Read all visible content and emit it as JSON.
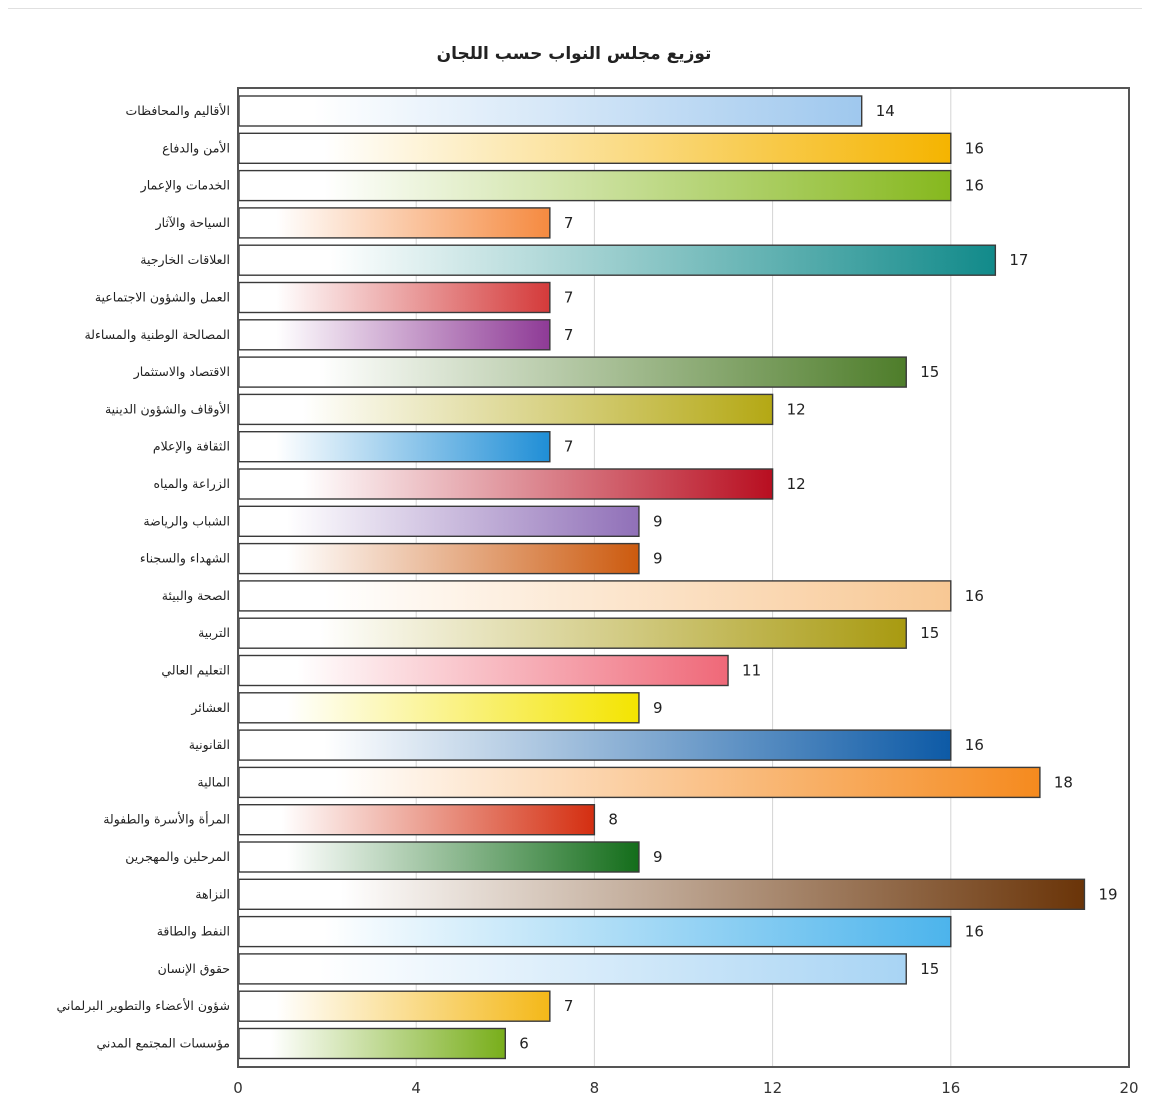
{
  "chart_data": {
    "type": "bar",
    "orientation": "horizontal",
    "title": "توزيع مجلس النواب حسب اللجان",
    "xlabel": "",
    "ylabel": "",
    "xlim": [
      0,
      20
    ],
    "xticks": [
      "0",
      "4",
      "8",
      "12",
      "16",
      "20"
    ],
    "grid": true,
    "categories": [
      "الأقاليم والمحافظات",
      "الأمن والدفاع",
      "الخدمات والإعمار",
      "السياحة والآثار",
      "العلاقات الخارجية",
      "العمل والشؤون الاجتماعية",
      "المصالحة الوطنية والمساءلة",
      "الاقتصاد والاستثمار",
      "الأوقاف والشؤون الدينية",
      "الثقافة والإعلام",
      "الزراعة والمياه",
      "الشباب والرياضة",
      "الشهداء والسجناء",
      "الصحة والبيئة",
      "التربية",
      "التعليم العالي",
      "العشائر",
      "القانونية",
      "المالية",
      "المرأة والأسرة والطفولة",
      "المرحلين والمهجرين",
      "النزاهة",
      "النفط والطاقة",
      "حقوق الإنسان",
      "شؤون الأعضاء والتطوير البرلماني",
      "مؤسسات المجتمع المدني"
    ],
    "values": [
      14,
      16,
      16,
      7,
      17,
      7,
      7,
      15,
      12,
      7,
      12,
      9,
      9,
      16,
      15,
      11,
      9,
      16,
      18,
      8,
      9,
      19,
      16,
      15,
      7,
      6
    ],
    "colors": [
      "#9fc8ee",
      "#f5b400",
      "#86b81e",
      "#f58a40",
      "#118a8a",
      "#d43a3a",
      "#8e3a96",
      "#4e7d2a",
      "#b4a814",
      "#1f8ed6",
      "#b80e20",
      "#9070b8",
      "#cc5a0e",
      "#f8c894",
      "#a89a10",
      "#ef6878",
      "#f4e400",
      "#0d5aa6",
      "#f58a1e",
      "#d42e10",
      "#136d1a",
      "#6a3408",
      "#4cb4ec",
      "#a8d4f4",
      "#f4b818",
      "#78ae1a"
    ]
  }
}
